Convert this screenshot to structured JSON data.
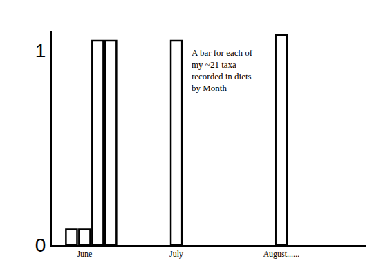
{
  "chart_data": {
    "type": "bar",
    "categories": [
      null,
      null,
      "June",
      null,
      null,
      null,
      null,
      null,
      null,
      "July",
      null,
      null,
      null,
      null,
      null,
      null,
      null,
      "August......",
      null,
      null,
      null,
      null,
      null,
      null
    ],
    "values": [
      null,
      0.08,
      0.08,
      1.05,
      1.05,
      null,
      null,
      null,
      null,
      1.05,
      null,
      null,
      null,
      null,
      null,
      null,
      null,
      1.08,
      null,
      null,
      null,
      null,
      null,
      null
    ],
    "color": "#ffffff",
    "ylim": [
      0,
      1.1
    ],
    "yticks": [
      0,
      1
    ],
    "grid": false,
    "annotations": [
      "A bar for each of\nmy ~21 taxa\nrecorded in diets\nby Month"
    ]
  }
}
